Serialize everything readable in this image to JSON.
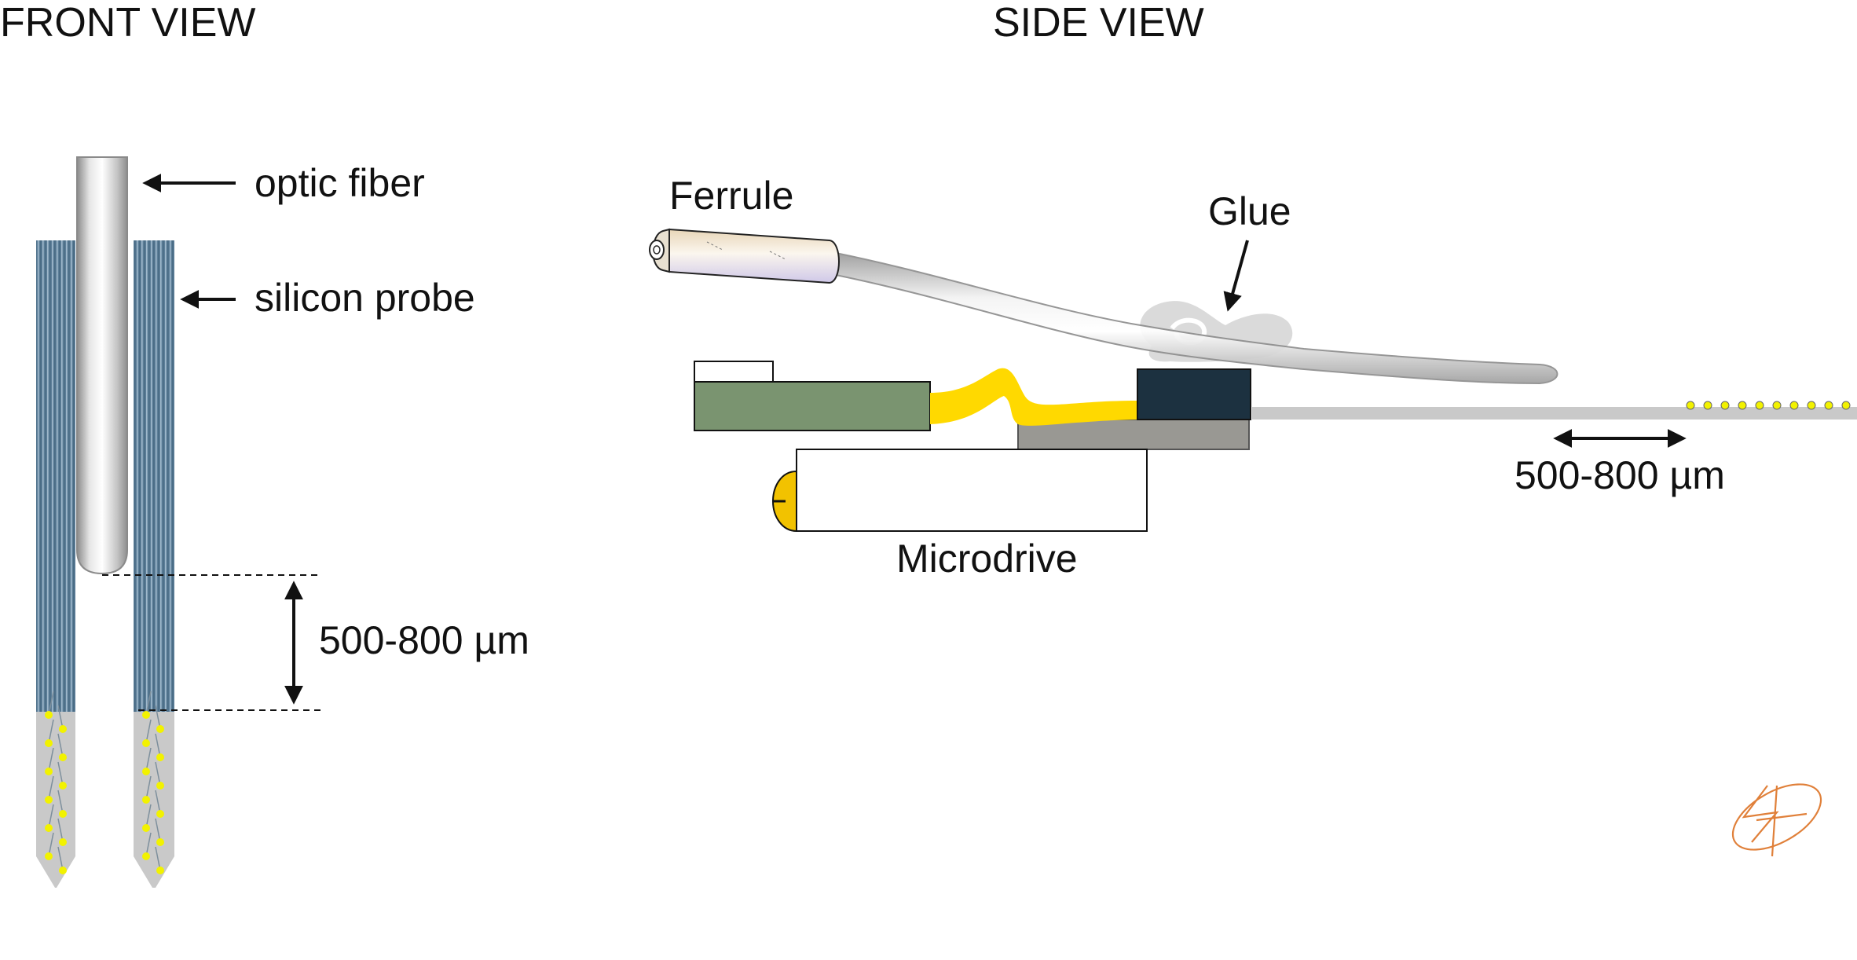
{
  "front_view": {
    "heading": "FRONT VIEW",
    "labels": {
      "optic_fiber": "optic fiber",
      "silicon_probe": "silicon probe",
      "distance": "500-800 µm"
    }
  },
  "side_view": {
    "heading": "SIDE VIEW",
    "labels": {
      "ferrule": "Ferrule",
      "glue": "Glue",
      "microdrive": "Microdrive",
      "distance": "500-800 µm"
    }
  },
  "colors": {
    "probe_shank": "#5d7f99",
    "probe_tip": "#c9c9c9",
    "recording_site": "#f2f200",
    "pcb": "#7a9470",
    "flex_cable": "#ffd900",
    "connector": "#1c3140",
    "base_plate": "#999893",
    "microdrive_screw": "#f2c200",
    "ferrule": "#f0e4d2",
    "signature": "#e0803a"
  },
  "icons": {
    "signature": "signature-logo"
  }
}
